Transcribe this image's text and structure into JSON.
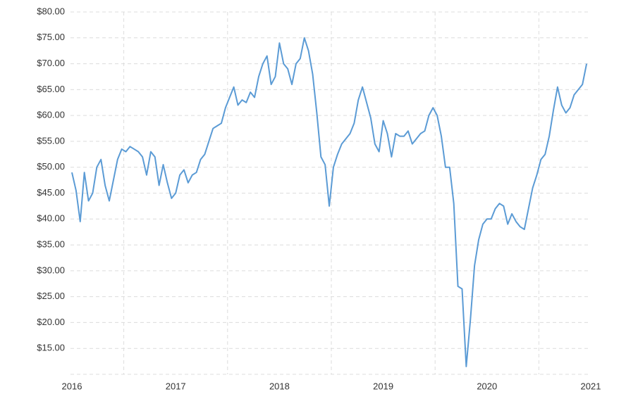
{
  "chart_data": {
    "type": "line",
    "x": [
      2016,
      2016.04,
      2016.08,
      2016.12,
      2016.16,
      2016.2,
      2016.24,
      2016.28,
      2016.32,
      2016.36,
      2016.4,
      2016.44,
      2016.48,
      2016.52,
      2016.56,
      2016.6,
      2016.64,
      2016.68,
      2016.72,
      2016.76,
      2016.8,
      2016.84,
      2016.88,
      2016.92,
      2016.96,
      2017,
      2017.04,
      2017.08,
      2017.12,
      2017.16,
      2017.2,
      2017.24,
      2017.28,
      2017.32,
      2017.36,
      2017.4,
      2017.44,
      2017.48,
      2017.52,
      2017.56,
      2017.6,
      2017.64,
      2017.68,
      2017.72,
      2017.76,
      2017.8,
      2017.84,
      2017.88,
      2017.92,
      2017.96,
      2018,
      2018.04,
      2018.08,
      2018.12,
      2018.16,
      2018.2,
      2018.24,
      2018.28,
      2018.32,
      2018.36,
      2018.4,
      2018.44,
      2018.48,
      2018.52,
      2018.56,
      2018.6,
      2018.64,
      2018.68,
      2018.72,
      2018.76,
      2018.8,
      2018.84,
      2018.88,
      2018.92,
      2018.96,
      2019,
      2019.04,
      2019.08,
      2019.12,
      2019.16,
      2019.2,
      2019.24,
      2019.28,
      2019.32,
      2019.36,
      2019.4,
      2019.44,
      2019.48,
      2019.52,
      2019.56,
      2019.6,
      2019.64,
      2019.68,
      2019.72,
      2019.76,
      2019.8,
      2019.84,
      2019.88,
      2019.92,
      2019.96,
      2020,
      2020.04,
      2020.08,
      2020.12,
      2020.16,
      2020.2,
      2020.24,
      2020.28,
      2020.32,
      2020.36,
      2020.4,
      2020.44,
      2020.48,
      2020.52,
      2020.56,
      2020.6,
      2020.64,
      2020.68,
      2020.72,
      2020.76,
      2020.8,
      2020.84,
      2020.88,
      2020.92,
      2020.96
    ],
    "values": [
      49,
      45.5,
      39.5,
      49,
      43.5,
      45,
      50,
      51.5,
      46.5,
      43.5,
      47.5,
      51.5,
      53.5,
      53,
      54,
      53.5,
      53,
      52,
      48.5,
      53,
      52,
      46.5,
      50.5,
      47,
      44,
      45,
      48.5,
      49.5,
      47,
      48.5,
      49,
      51.5,
      52.5,
      55,
      57.5,
      58,
      58.5,
      61.5,
      63.5,
      65.5,
      62,
      63,
      62.5,
      64.5,
      63.5,
      67.5,
      70,
      71.5,
      66,
      67.5,
      74,
      70,
      69,
      66,
      70,
      71,
      75,
      72.5,
      68,
      60.5,
      52,
      50.5,
      42.5,
      50,
      52.5,
      54.5,
      55.5,
      56.5,
      58.5,
      63,
      65.5,
      62.5,
      59.5,
      54.5,
      53,
      59,
      56.5,
      52,
      56.5,
      56,
      56,
      57,
      54.5,
      55.5,
      56.5,
      57,
      60,
      61.5,
      60,
      56,
      50,
      50,
      43,
      27,
      26.5,
      11.5,
      20.5,
      31,
      36,
      39,
      40,
      40,
      42,
      43,
      42.5,
      39,
      41,
      39.5,
      38.5,
      38,
      42,
      46,
      48.5,
      51.5,
      52.5,
      56,
      61,
      65.5,
      62,
      60.5,
      61.5,
      64,
      65,
      66,
      70
    ],
    "color": "#5b9bd5",
    "xlim": [
      2016,
      2021
    ],
    "xticks": [
      2016,
      2017,
      2018,
      2019,
      2020,
      2021
    ],
    "xgrid": [
      2016.5,
      2017.5,
      2018.5,
      2019.5,
      2020.5
    ],
    "ylim": [
      10,
      80
    ],
    "yticks": [
      {
        "value": 15,
        "label": "$15.00"
      },
      {
        "value": 20,
        "label": "$20.00"
      },
      {
        "value": 25,
        "label": "$25.00"
      },
      {
        "value": 30,
        "label": "$30.00"
      },
      {
        "value": 35,
        "label": "$35.00"
      },
      {
        "value": 40,
        "label": "$40.00"
      },
      {
        "value": 45,
        "label": "$45.00"
      },
      {
        "value": 50,
        "label": "$50.00"
      },
      {
        "value": 55,
        "label": "$55.00"
      },
      {
        "value": 60,
        "label": "$60.00"
      },
      {
        "value": 65,
        "label": "$65.00"
      },
      {
        "value": 70,
        "label": "$70.00"
      },
      {
        "value": 75,
        "label": "$75.00"
      },
      {
        "value": 80,
        "label": "$80.00"
      }
    ],
    "grid": true
  }
}
